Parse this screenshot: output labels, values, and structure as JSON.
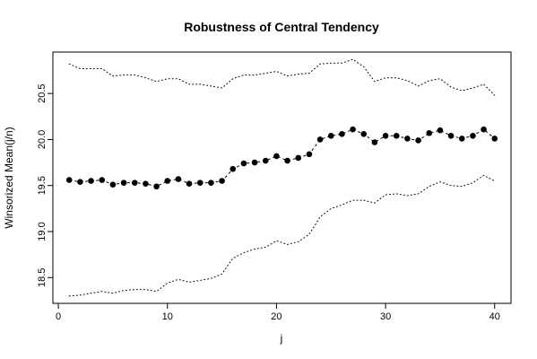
{
  "chart_data": {
    "type": "scatter",
    "title": "Robustness of Central Tendency",
    "xlabel": "j",
    "ylabel": "Winsorized Mean(j/n)",
    "xlim": [
      -0.5,
      41.5
    ],
    "ylim": [
      18.22,
      20.95
    ],
    "x_ticks": [
      0,
      10,
      20,
      30,
      40
    ],
    "y_ticks": [
      18.5,
      19.0,
      19.5,
      20.0,
      20.5
    ],
    "x_tick_labels": [
      "0",
      "10",
      "20",
      "30",
      "40"
    ],
    "y_tick_labels": [
      "18.5",
      "19.0",
      "19.5",
      "20.0",
      "20.5"
    ],
    "grid": false,
    "x": [
      1,
      2,
      3,
      4,
      5,
      6,
      7,
      8,
      9,
      10,
      11,
      12,
      13,
      14,
      15,
      16,
      17,
      18,
      19,
      20,
      21,
      22,
      23,
      24,
      25,
      26,
      27,
      28,
      29,
      30,
      31,
      32,
      33,
      34,
      35,
      36,
      37,
      38,
      39,
      40
    ],
    "series": [
      {
        "style": "points-with-dashed-line",
        "values": [
          19.56,
          19.54,
          19.55,
          19.56,
          19.51,
          19.53,
          19.53,
          19.52,
          19.49,
          19.55,
          19.57,
          19.52,
          19.53,
          19.53,
          19.55,
          19.68,
          19.74,
          19.75,
          19.77,
          19.82,
          19.77,
          19.8,
          19.84,
          20.0,
          20.04,
          20.06,
          20.11,
          20.06,
          19.97,
          20.04,
          20.04,
          20.01,
          19.99,
          20.07,
          20.1,
          20.04,
          20.01,
          20.04,
          20.11,
          20.01
        ]
      },
      {
        "style": "dotted",
        "values": [
          20.82,
          20.77,
          20.77,
          20.77,
          20.69,
          20.7,
          20.7,
          20.67,
          20.63,
          20.66,
          20.66,
          20.6,
          20.6,
          20.58,
          20.56,
          20.66,
          20.7,
          20.7,
          20.72,
          20.74,
          20.69,
          20.71,
          20.72,
          20.82,
          20.83,
          20.83,
          20.87,
          20.79,
          20.63,
          20.67,
          20.67,
          20.64,
          20.58,
          20.64,
          20.66,
          20.57,
          20.53,
          20.56,
          20.6,
          20.48
        ]
      },
      {
        "style": "dotted",
        "values": [
          18.3,
          18.31,
          18.33,
          18.35,
          18.33,
          18.36,
          18.37,
          18.37,
          18.35,
          18.44,
          18.48,
          18.45,
          18.47,
          18.49,
          18.54,
          18.71,
          18.77,
          18.81,
          18.83,
          18.9,
          18.86,
          18.89,
          18.97,
          19.16,
          19.25,
          19.29,
          19.34,
          19.34,
          19.31,
          19.4,
          19.41,
          19.39,
          19.41,
          19.49,
          19.54,
          19.5,
          19.49,
          19.53,
          19.61,
          19.55
        ]
      }
    ]
  }
}
